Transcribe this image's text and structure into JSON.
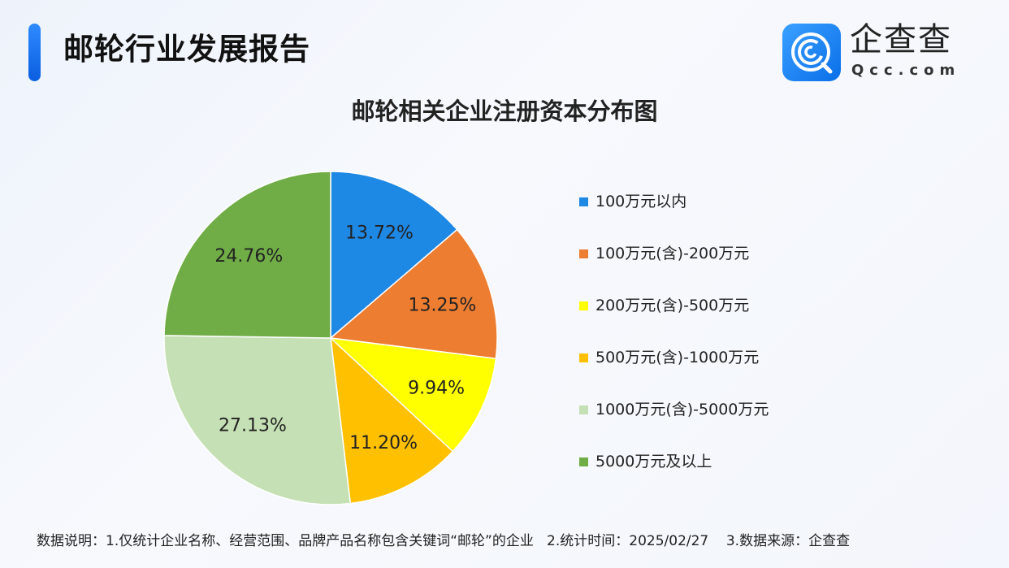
{
  "header": {
    "title": "邮轮行业发展报告",
    "brand": "企查查",
    "brand_sub": "Qcc.com"
  },
  "chart_data": {
    "type": "pie",
    "title": "邮轮相关企业注册资本分布图",
    "start": "12 o'clock, clockwise",
    "legend_position": "right",
    "slices": [
      {
        "label": "100万元以内",
        "value": 13.72,
        "text": "13.72%",
        "color": "#1e88e5"
      },
      {
        "label": "100万元(含)-200万元",
        "value": 13.25,
        "text": "13.25%",
        "color": "#ed7d31"
      },
      {
        "label": "200万元(含)-500万元",
        "value": 9.94,
        "text": "9.94%",
        "color": "#ffff00"
      },
      {
        "label": "500万元(含)-1000万元",
        "value": 11.2,
        "text": "11.20%",
        "color": "#ffc000"
      },
      {
        "label": "1000万元(含)-5000万元",
        "value": 27.13,
        "text": "27.13%",
        "color": "#c5e0b4"
      },
      {
        "label": "5000万元及以上",
        "value": 24.76,
        "text": "24.76%",
        "color": "#70ad47"
      }
    ]
  },
  "footer": {
    "note": "数据说明：1.仅统计企业名称、经营范围、品牌产品名称包含关键词“邮轮”的企业   2.统计时间：2025/02/27    3.数据来源：企查查"
  }
}
